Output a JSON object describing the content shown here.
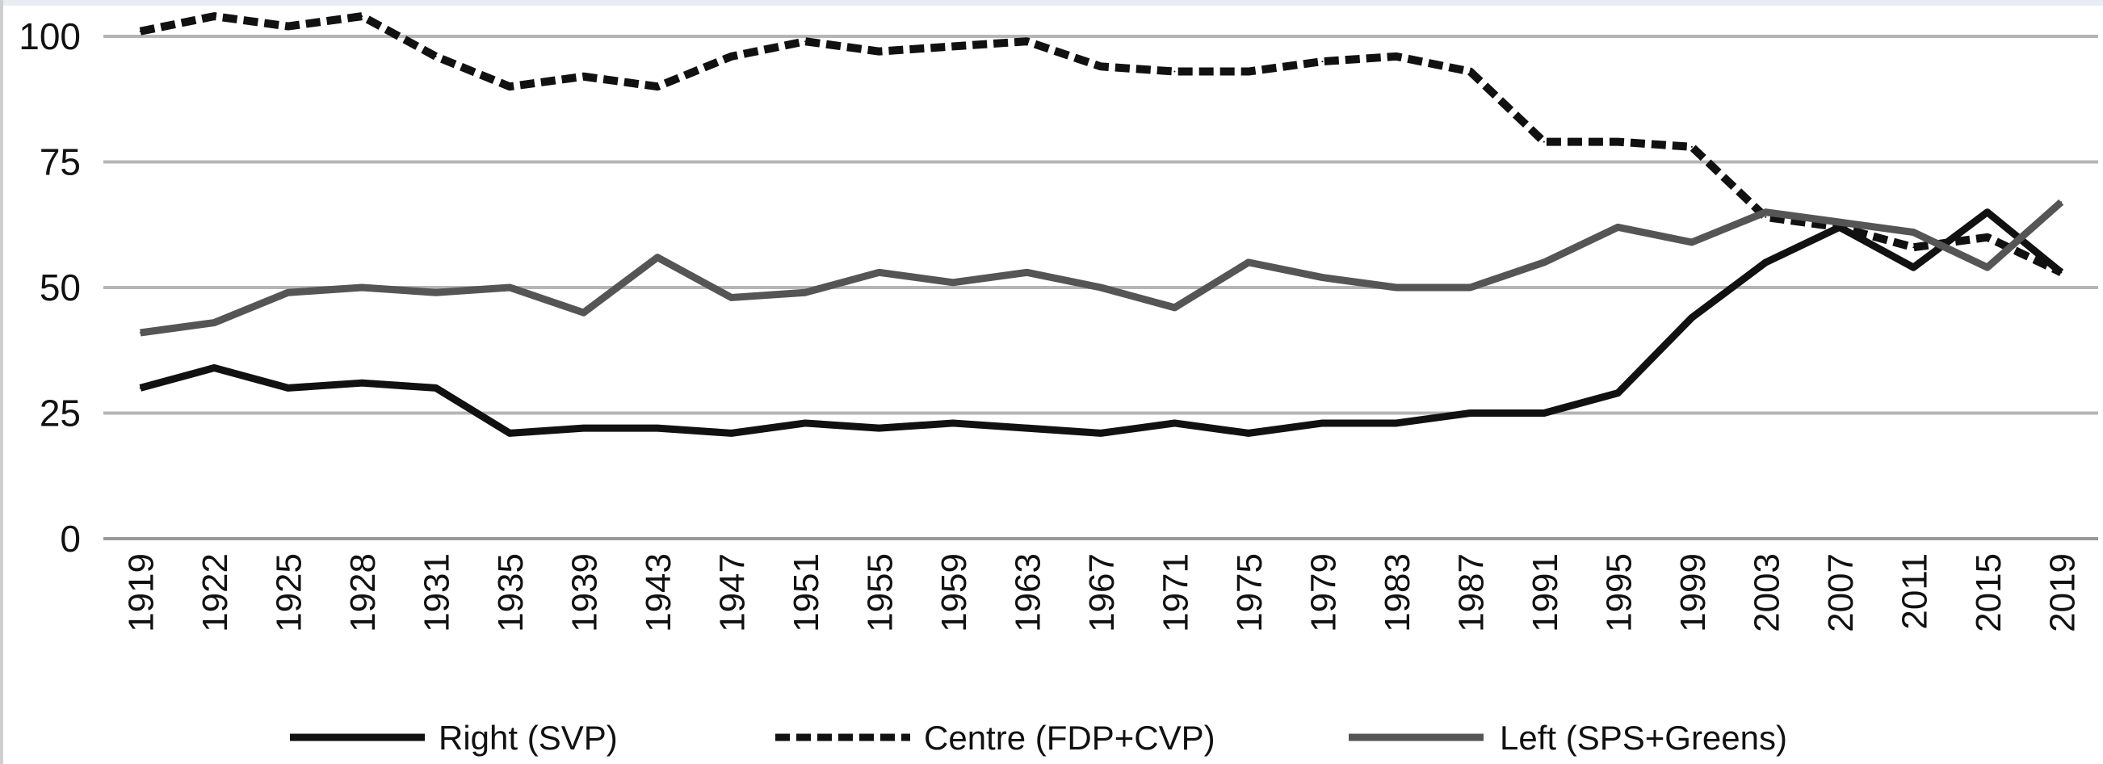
{
  "chart_data": {
    "type": "line",
    "title": "",
    "xlabel": "",
    "ylabel": "",
    "ylim": [
      0,
      100
    ],
    "yticks": [
      "0",
      "25",
      "50",
      "75",
      "100"
    ],
    "grid": true,
    "legend_position": "bottom",
    "x": [
      "1919",
      "1922",
      "1925",
      "1928",
      "1931",
      "1935",
      "1939",
      "1943",
      "1947",
      "1951",
      "1955",
      "1959",
      "1963",
      "1967",
      "1971",
      "1975",
      "1979",
      "1983",
      "1987",
      "1991",
      "1995",
      "1999",
      "2003",
      "2007",
      "2011",
      "2015",
      "2019"
    ],
    "series": [
      {
        "name": "Right (SVP)",
        "color": "#111111",
        "style": "solid",
        "values": [
          30,
          34,
          30,
          31,
          30,
          21,
          22,
          22,
          21,
          23,
          22,
          23,
          22,
          21,
          23,
          21,
          23,
          23,
          25,
          25,
          29,
          44,
          55,
          62,
          54,
          65,
          53
        ]
      },
      {
        "name": "Centre (FDP+CVP)",
        "color": "#111111",
        "style": "dashed",
        "values": [
          101,
          104,
          102,
          104,
          96,
          90,
          92,
          90,
          96,
          99,
          97,
          98,
          99,
          94,
          93,
          93,
          95,
          96,
          93,
          79,
          79,
          78,
          64,
          62,
          58,
          60,
          53
        ]
      },
      {
        "name": "Left (SPS+Greens)",
        "color": "#555555",
        "style": "solid",
        "values": [
          41,
          43,
          49,
          50,
          49,
          50,
          45,
          56,
          48,
          49,
          53,
          51,
          53,
          50,
          46,
          55,
          52,
          50,
          50,
          55,
          62,
          59,
          65,
          63,
          61,
          54,
          67
        ]
      }
    ]
  }
}
